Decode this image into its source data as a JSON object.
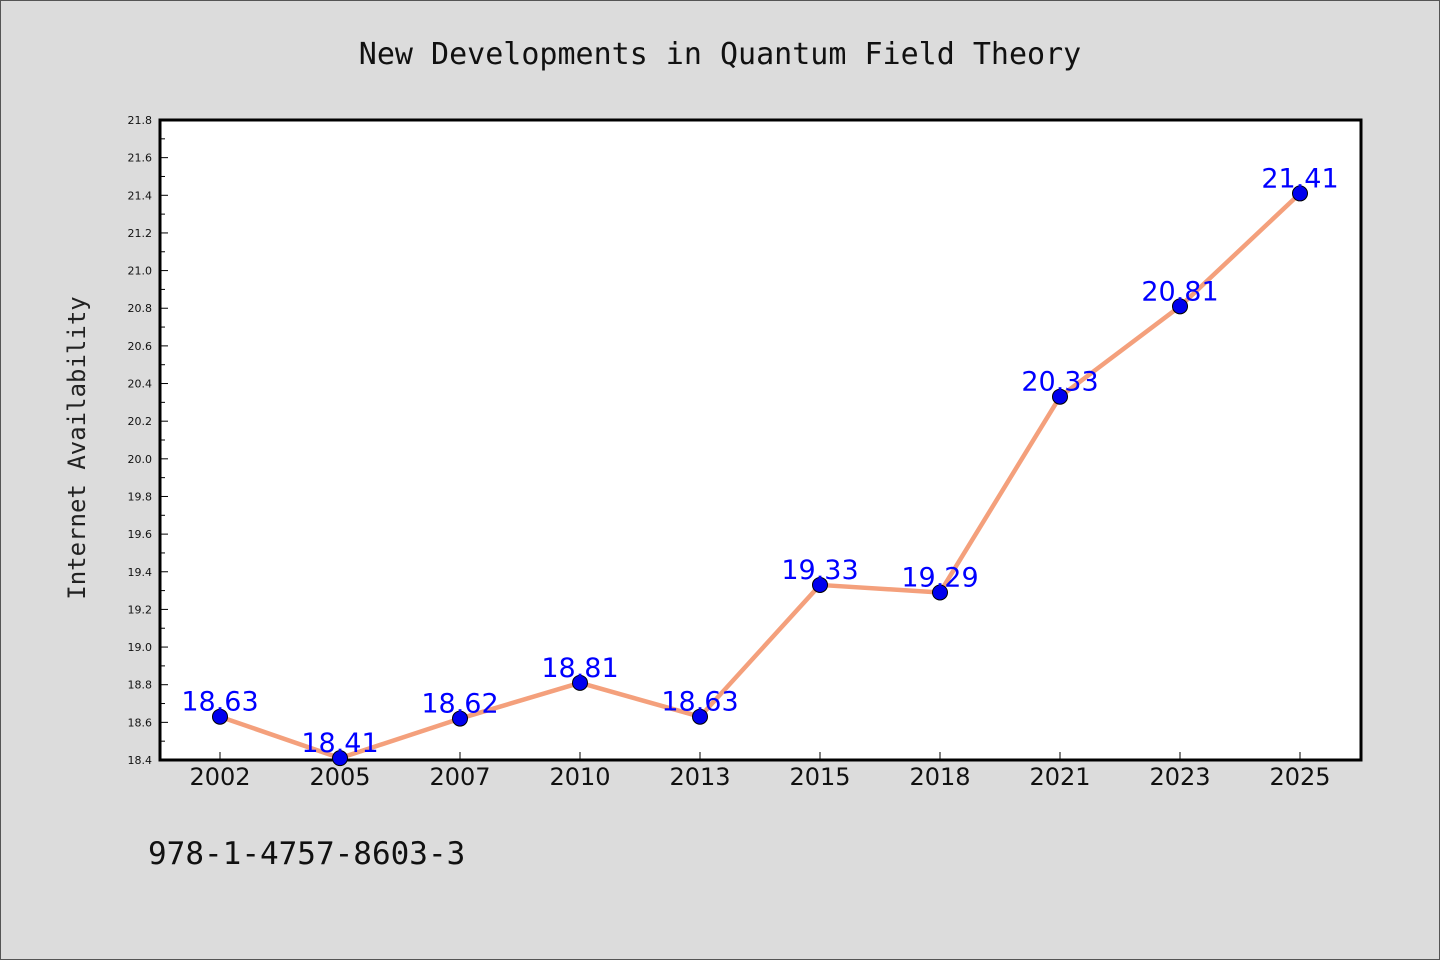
{
  "chart_data": {
    "type": "line",
    "title": "New Developments in Quantum Field Theory",
    "xlabel": "",
    "ylabel": "Internet Availability",
    "categories": [
      "2002",
      "2005",
      "2007",
      "2010",
      "2013",
      "2015",
      "2018",
      "2021",
      "2023",
      "2025"
    ],
    "series": [
      {
        "values": [
          18.63,
          18.41,
          18.62,
          18.81,
          18.63,
          19.33,
          19.29,
          20.33,
          20.81,
          21.41
        ],
        "labels": [
          "18.63",
          "18.41",
          "18.62",
          "18.81",
          "18.63",
          "19.33",
          "19.29",
          "20.33",
          "20.81",
          "21.41"
        ]
      }
    ],
    "ylim": [
      18.4,
      21.8
    ],
    "yticks": [
      "18.4",
      "18.6",
      "18.8",
      "19.0",
      "19.2",
      "19.4",
      "19.6",
      "19.8",
      "20.0",
      "20.2",
      "20.4",
      "20.6",
      "20.8",
      "21.0",
      "21.2",
      "21.4",
      "21.6",
      "21.8"
    ],
    "grid": false,
    "legend": "none",
    "colors": {
      "line": "#f4a07c",
      "marker": "#0000ee",
      "label": "#0000ff",
      "plot_bg": "#ffffff",
      "figure_bg": "#dcdcdc"
    }
  },
  "footer": {
    "isbn": "978-1-4757-8603-3"
  }
}
